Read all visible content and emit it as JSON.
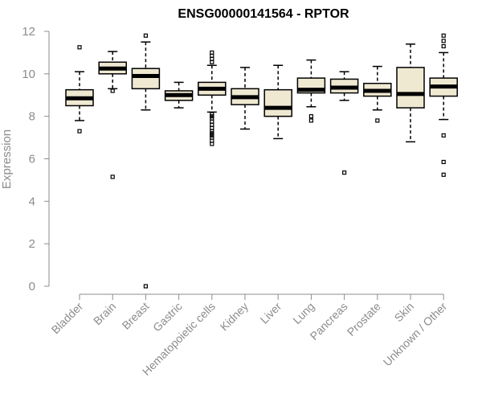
{
  "chart_data": {
    "type": "boxplot",
    "title": "ENSG00000141564 - RPTOR",
    "xlabel": "",
    "ylabel": "Expression",
    "ylim": [
      0,
      12
    ],
    "yticks": [
      0,
      2,
      4,
      6,
      8,
      10,
      12
    ],
    "grid": false,
    "categories": [
      "Bladder",
      "Brain",
      "Breast",
      "Gastric",
      "Hematopoietic cells",
      "Kidney",
      "Liver",
      "Lung",
      "Pancreas",
      "Prostate",
      "Skin",
      "Unknown / Other"
    ],
    "boxes": [
      {
        "min": 7.8,
        "q1": 8.5,
        "median": 8.85,
        "q3": 9.25,
        "max": 10.1,
        "outliers": [
          7.3,
          11.25
        ]
      },
      {
        "min": 9.3,
        "q1": 10.0,
        "median": 10.25,
        "q3": 10.55,
        "max": 11.05,
        "outliers": [
          5.15,
          9.2
        ]
      },
      {
        "min": 8.3,
        "q1": 9.3,
        "median": 9.9,
        "q3": 10.25,
        "max": 11.5,
        "outliers": [
          0.0,
          11.8
        ]
      },
      {
        "min": 8.4,
        "q1": 8.75,
        "median": 9.0,
        "q3": 9.2,
        "max": 9.6,
        "outliers": []
      },
      {
        "min": 8.2,
        "q1": 9.0,
        "median": 9.3,
        "q3": 9.6,
        "max": 10.4,
        "outliers": [
          6.7,
          6.85,
          7.0,
          7.1,
          7.2,
          7.3,
          7.45,
          7.6,
          7.75,
          7.9,
          8.0,
          8.1,
          10.55,
          10.7,
          10.85,
          11.0
        ]
      },
      {
        "min": 7.4,
        "q1": 8.55,
        "median": 8.9,
        "q3": 9.3,
        "max": 10.3,
        "outliers": []
      },
      {
        "min": 6.95,
        "q1": 8.0,
        "median": 8.4,
        "q3": 9.25,
        "max": 10.4,
        "outliers": []
      },
      {
        "min": 8.45,
        "q1": 9.1,
        "median": 9.25,
        "q3": 9.8,
        "max": 10.65,
        "outliers": [
          7.8,
          8.0
        ]
      },
      {
        "min": 8.75,
        "q1": 9.1,
        "median": 9.35,
        "q3": 9.75,
        "max": 10.1,
        "outliers": [
          5.35
        ]
      },
      {
        "min": 8.3,
        "q1": 8.95,
        "median": 9.2,
        "q3": 9.55,
        "max": 10.35,
        "outliers": [
          7.8
        ]
      },
      {
        "min": 6.8,
        "q1": 8.4,
        "median": 9.05,
        "q3": 10.3,
        "max": 11.4,
        "outliers": []
      },
      {
        "min": 7.85,
        "q1": 8.95,
        "median": 9.4,
        "q3": 9.8,
        "max": 11.0,
        "outliers": [
          5.25,
          5.85,
          7.1,
          11.3,
          11.55,
          11.8
        ]
      }
    ]
  }
}
